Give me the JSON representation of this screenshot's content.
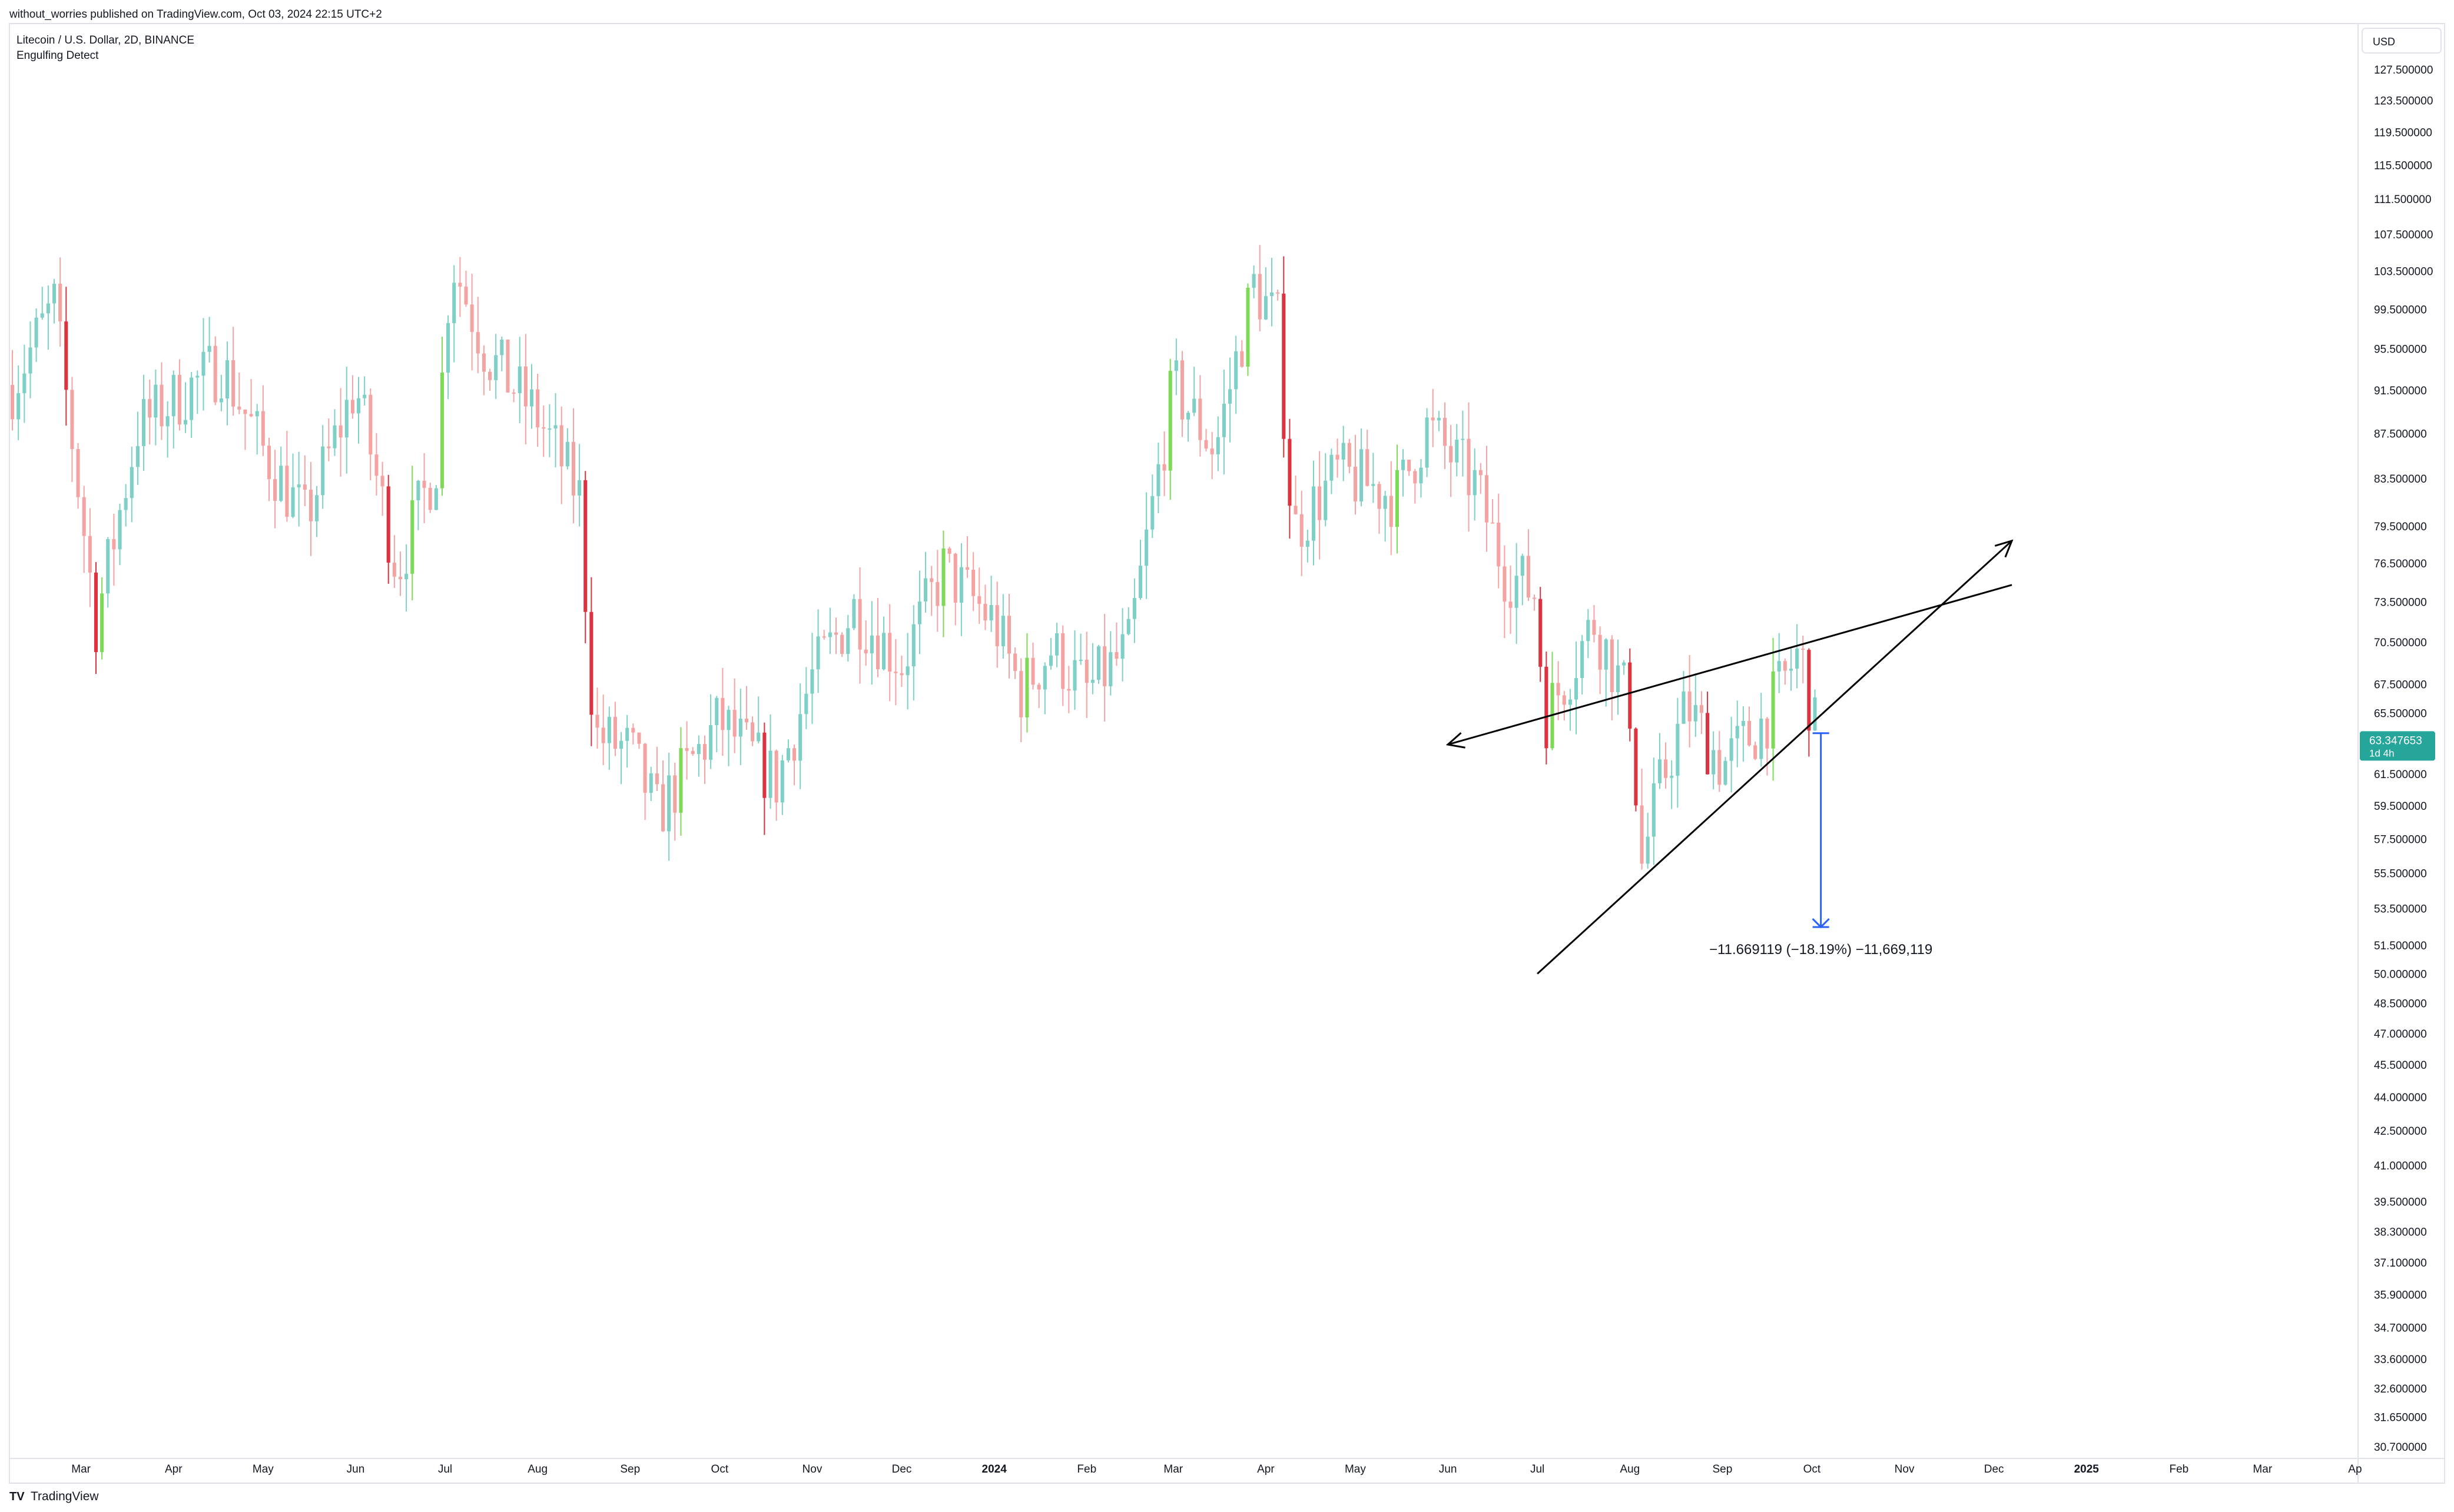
{
  "header": {
    "published_by": "without_worries published on TradingView.com, Oct 03, 2024 22:15 UTC+2",
    "symbol_line": "Litecoin / U.S. Dollar, 2D, BINANCE",
    "indicator": "Engulfing Detect"
  },
  "footer": {
    "brand": "TradingView",
    "logo_glyph": "TV"
  },
  "price_axis": {
    "currency": "USD",
    "ticks": [
      "127.500000",
      "123.500000",
      "119.500000",
      "115.500000",
      "111.500000",
      "107.500000",
      "103.500000",
      "99.500000",
      "95.500000",
      "91.500000",
      "87.500000",
      "83.500000",
      "79.500000",
      "76.500000",
      "73.500000",
      "70.500000",
      "67.500000",
      "65.500000",
      "61.500000",
      "59.500000",
      "57.500000",
      "55.500000",
      "53.500000",
      "51.500000",
      "50.000000",
      "48.500000",
      "47.000000",
      "45.500000",
      "44.000000",
      "42.500000",
      "41.000000",
      "39.500000",
      "38.300000",
      "37.100000",
      "35.900000",
      "34.700000",
      "33.600000",
      "32.600000",
      "31.650000",
      "30.700000"
    ],
    "last_price": "63.347653",
    "countdown": "1d 4h",
    "last_price_color": "#26a69a"
  },
  "time_axis": {
    "labels": [
      {
        "text": "Mar",
        "bold": false
      },
      {
        "text": "Apr",
        "bold": false
      },
      {
        "text": "May",
        "bold": false
      },
      {
        "text": "Jun",
        "bold": false
      },
      {
        "text": "Jul",
        "bold": false
      },
      {
        "text": "Aug",
        "bold": false
      },
      {
        "text": "Sep",
        "bold": false
      },
      {
        "text": "Oct",
        "bold": false
      },
      {
        "text": "Nov",
        "bold": false
      },
      {
        "text": "Dec",
        "bold": false
      },
      {
        "text": "2024",
        "bold": true
      },
      {
        "text": "Feb",
        "bold": false
      },
      {
        "text": "Mar",
        "bold": false
      },
      {
        "text": "Apr",
        "bold": false
      },
      {
        "text": "May",
        "bold": false
      },
      {
        "text": "Jun",
        "bold": false
      },
      {
        "text": "Jul",
        "bold": false
      },
      {
        "text": "Aug",
        "bold": false
      },
      {
        "text": "Sep",
        "bold": false
      },
      {
        "text": "Oct",
        "bold": false
      },
      {
        "text": "Nov",
        "bold": false
      },
      {
        "text": "Dec",
        "bold": false
      },
      {
        "text": "2025",
        "bold": true
      },
      {
        "text": "Feb",
        "bold": false
      },
      {
        "text": "Mar",
        "bold": false
      },
      {
        "text": "Ap",
        "bold": false
      }
    ]
  },
  "measure": {
    "label": "−11.669119 (−18.19%) −11,669,119",
    "color": "#2962ff"
  },
  "colors": {
    "up": "#7ecfc6",
    "down": "#f4a3a3",
    "engulf_up": "#7ed957",
    "engulf_down": "#e0323e",
    "line": "#000000",
    "axis_text": "#131722",
    "border": "#e0e3eb"
  },
  "chart_data": {
    "type": "candlestick",
    "symbol": "LTCUSD",
    "interval": "2D",
    "exchange": "BINANCE",
    "y_scale": "log",
    "ylim": [
      30.7,
      127.5
    ],
    "xlim": [
      "2023-02-05",
      "2025-04-02"
    ],
    "grid": false,
    "last_price": 63.347653,
    "monthly_path": [
      {
        "date": "2023-02-06",
        "close": 92
      },
      {
        "date": "2023-02-20",
        "close": 100
      },
      {
        "date": "2023-03-06",
        "close": 72
      },
      {
        "date": "2023-03-20",
        "close": 88
      },
      {
        "date": "2023-04-03",
        "close": 91
      },
      {
        "date": "2023-04-17",
        "close": 94
      },
      {
        "date": "2023-05-01",
        "close": 86
      },
      {
        "date": "2023-05-15",
        "close": 80
      },
      {
        "date": "2023-06-01",
        "close": 92
      },
      {
        "date": "2023-06-15",
        "close": 76
      },
      {
        "date": "2023-06-28",
        "close": 85
      },
      {
        "date": "2023-07-03",
        "close": 105
      },
      {
        "date": "2023-07-15",
        "close": 95
      },
      {
        "date": "2023-08-01",
        "close": 89
      },
      {
        "date": "2023-08-15",
        "close": 82
      },
      {
        "date": "2023-08-20",
        "close": 64
      },
      {
        "date": "2023-09-01",
        "close": 63
      },
      {
        "date": "2023-09-10",
        "close": 59
      },
      {
        "date": "2023-10-01",
        "close": 65
      },
      {
        "date": "2023-10-20",
        "close": 61
      },
      {
        "date": "2023-11-01",
        "close": 68
      },
      {
        "date": "2023-11-15",
        "close": 73
      },
      {
        "date": "2023-12-01",
        "close": 69
      },
      {
        "date": "2023-12-15",
        "close": 76
      },
      {
        "date": "2024-01-01",
        "close": 72
      },
      {
        "date": "2024-01-10",
        "close": 67
      },
      {
        "date": "2024-01-20",
        "close": 70
      },
      {
        "date": "2024-02-01",
        "close": 67
      },
      {
        "date": "2024-02-15",
        "close": 70
      },
      {
        "date": "2024-03-01",
        "close": 92
      },
      {
        "date": "2024-03-15",
        "close": 86
      },
      {
        "date": "2024-03-28",
        "close": 102
      },
      {
        "date": "2024-04-05",
        "close": 98
      },
      {
        "date": "2024-04-10",
        "close": 79
      },
      {
        "date": "2024-04-25",
        "close": 84
      },
      {
        "date": "2024-05-15",
        "close": 82
      },
      {
        "date": "2024-05-25",
        "close": 88
      },
      {
        "date": "2024-06-10",
        "close": 83
      },
      {
        "date": "2024-06-20",
        "close": 76
      },
      {
        "date": "2024-07-01",
        "close": 74
      },
      {
        "date": "2024-07-03",
        "close": 65
      },
      {
        "date": "2024-07-20",
        "close": 72
      },
      {
        "date": "2024-08-01",
        "close": 66
      },
      {
        "date": "2024-08-05",
        "close": 56
      },
      {
        "date": "2024-08-10",
        "close": 60
      },
      {
        "date": "2024-08-20",
        "close": 66
      },
      {
        "date": "2024-09-01",
        "close": 62
      },
      {
        "date": "2024-09-15",
        "close": 65
      },
      {
        "date": "2024-09-27",
        "close": 70
      },
      {
        "date": "2024-10-03",
        "close": 63.35
      }
    ],
    "annotations": [
      {
        "type": "arrow_line",
        "from": {
          "date": "2024-06-01",
          "price": 63.4
        },
        "to": {
          "date": "2024-12-07",
          "price": 74.8
        }
      },
      {
        "type": "arrow_line",
        "from": {
          "date": "2024-07-01",
          "price": 50.0
        },
        "to": {
          "date": "2024-12-07",
          "price": 78.3
        }
      },
      {
        "type": "price_range",
        "date": "2024-10-04",
        "from": 64.15,
        "to": 52.48,
        "change": -11.669119,
        "percent": -18.19
      }
    ]
  }
}
